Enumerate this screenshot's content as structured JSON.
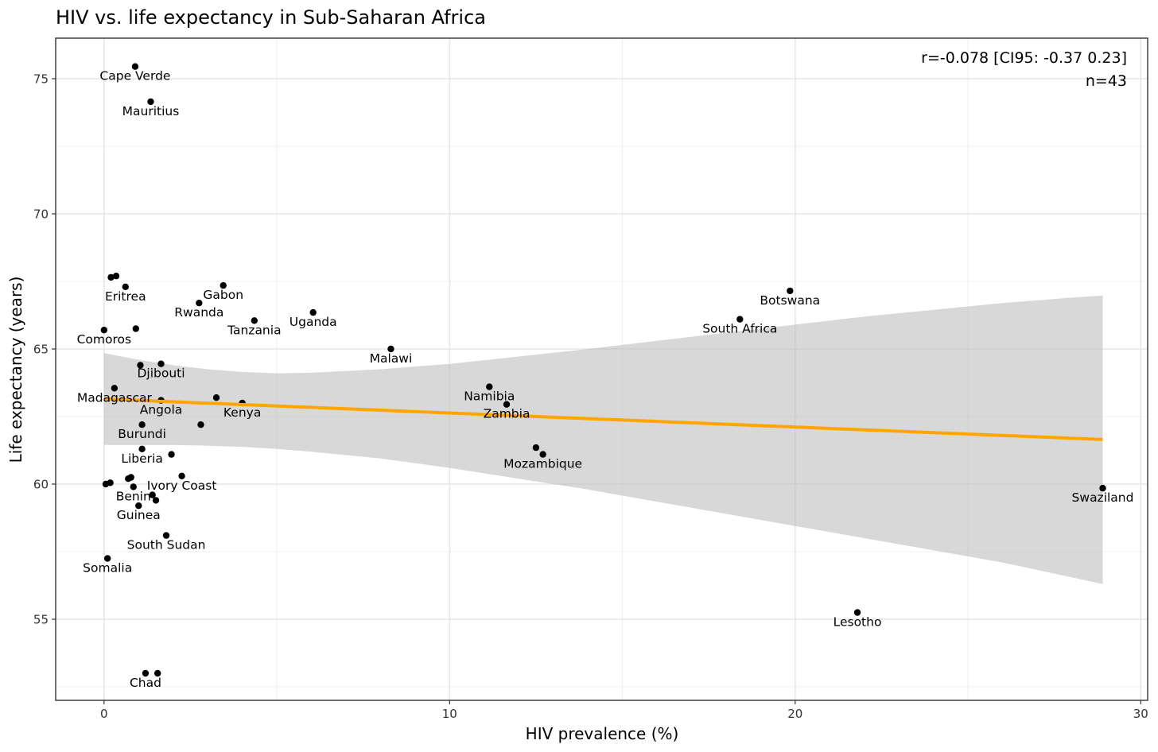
{
  "chart_data": {
    "type": "scatter",
    "title": "HIV vs. life expectancy in Sub-Saharan Africa",
    "xlabel": "HIV prevalence (%)",
    "ylabel": "Life expectancy (years)",
    "xlim": [
      -1.4,
      30.2
    ],
    "ylim": [
      52.0,
      76.5
    ],
    "x_ticks": [
      0,
      10,
      20,
      30
    ],
    "x_tick_labels": [
      "0",
      "10",
      "20",
      "30"
    ],
    "y_ticks": [
      55,
      60,
      65,
      70,
      75
    ],
    "y_tick_labels": [
      "55",
      "60",
      "65",
      "70",
      "75"
    ],
    "grid": true,
    "annotation": [
      "r=-0.078 [CI95: -0.37 0.23]",
      "n=43"
    ],
    "regression": {
      "color": "#FFA500",
      "x": [
        0,
        28.9
      ],
      "y": [
        63.15,
        61.65
      ],
      "ci_band": {
        "color": "#BEBEBE",
        "x": [
          0,
          1,
          2,
          3,
          4,
          5,
          6,
          8,
          10,
          12,
          14,
          16,
          18,
          20,
          22,
          24,
          26,
          28,
          28.9
        ],
        "upper": [
          64.85,
          64.6,
          64.4,
          64.25,
          64.15,
          64.1,
          64.12,
          64.25,
          64.45,
          64.72,
          65.0,
          65.3,
          65.6,
          65.9,
          66.2,
          66.45,
          66.7,
          66.9,
          66.98
        ],
        "lower": [
          61.45,
          61.45,
          61.45,
          61.42,
          61.38,
          61.3,
          61.2,
          60.95,
          60.6,
          60.2,
          59.8,
          59.35,
          58.9,
          58.45,
          58.0,
          57.55,
          57.1,
          56.55,
          56.3
        ]
      }
    },
    "points": [
      {
        "x": 0.9,
        "y": 75.45,
        "label": "Cape Verde"
      },
      {
        "x": 1.35,
        "y": 74.15,
        "label": "Mauritius"
      },
      {
        "x": 0.2,
        "y": 67.65,
        "label": ""
      },
      {
        "x": 0.35,
        "y": 67.7,
        "label": ""
      },
      {
        "x": 0.62,
        "y": 67.3,
        "label": "Eritrea"
      },
      {
        "x": 3.45,
        "y": 67.35,
        "label": "Gabon"
      },
      {
        "x": 2.75,
        "y": 66.7,
        "label": "Rwanda"
      },
      {
        "x": 4.35,
        "y": 66.05,
        "label": "Tanzania"
      },
      {
        "x": 6.05,
        "y": 66.35,
        "label": "Uganda"
      },
      {
        "x": 19.85,
        "y": 67.15,
        "label": "Botswana"
      },
      {
        "x": 18.4,
        "y": 66.1,
        "label": "South Africa"
      },
      {
        "x": 0.0,
        "y": 65.7,
        "label": "Comoros"
      },
      {
        "x": 0.92,
        "y": 65.75,
        "label": ""
      },
      {
        "x": 8.3,
        "y": 65.0,
        "label": "Malawi"
      },
      {
        "x": 1.05,
        "y": 64.4,
        "label": ""
      },
      {
        "x": 1.65,
        "y": 64.45,
        "label": "Djibouti"
      },
      {
        "x": 0.3,
        "y": 63.55,
        "label": "Madagascar"
      },
      {
        "x": 1.65,
        "y": 63.1,
        "label": "Angola"
      },
      {
        "x": 3.25,
        "y": 63.2,
        "label": ""
      },
      {
        "x": 4.0,
        "y": 63.0,
        "label": "Kenya"
      },
      {
        "x": 11.15,
        "y": 63.6,
        "label": "Namibia"
      },
      {
        "x": 11.65,
        "y": 62.95,
        "label": "Zambia"
      },
      {
        "x": 1.1,
        "y": 62.2,
        "label": "Burundi"
      },
      {
        "x": 2.8,
        "y": 62.2,
        "label": ""
      },
      {
        "x": 12.5,
        "y": 61.35,
        "label": ""
      },
      {
        "x": 12.7,
        "y": 61.1,
        "label": "Mozambique"
      },
      {
        "x": 1.1,
        "y": 61.3,
        "label": "Liberia"
      },
      {
        "x": 1.95,
        "y": 61.1,
        "label": ""
      },
      {
        "x": 2.25,
        "y": 60.3,
        "label": "Ivory Coast"
      },
      {
        "x": 0.7,
        "y": 60.2,
        "label": ""
      },
      {
        "x": 0.78,
        "y": 60.25,
        "label": ""
      },
      {
        "x": 0.18,
        "y": 60.05,
        "label": ""
      },
      {
        "x": 0.85,
        "y": 59.9,
        "label": "Benin"
      },
      {
        "x": 1.4,
        "y": 59.6,
        "label": ""
      },
      {
        "x": 1.5,
        "y": 59.4,
        "label": ""
      },
      {
        "x": 1.0,
        "y": 59.2,
        "label": "Guinea"
      },
      {
        "x": 28.9,
        "y": 59.85,
        "label": "Swaziland"
      },
      {
        "x": 1.8,
        "y": 58.1,
        "label": "South Sudan"
      },
      {
        "x": 0.1,
        "y": 57.25,
        "label": "Somalia"
      },
      {
        "x": 21.8,
        "y": 55.25,
        "label": "Lesotho"
      },
      {
        "x": 1.2,
        "y": 53.0,
        "label": "Chad"
      },
      {
        "x": 1.55,
        "y": 53.0,
        "label": ""
      },
      {
        "x": 0.05,
        "y": 60.0,
        "label": ""
      }
    ]
  }
}
